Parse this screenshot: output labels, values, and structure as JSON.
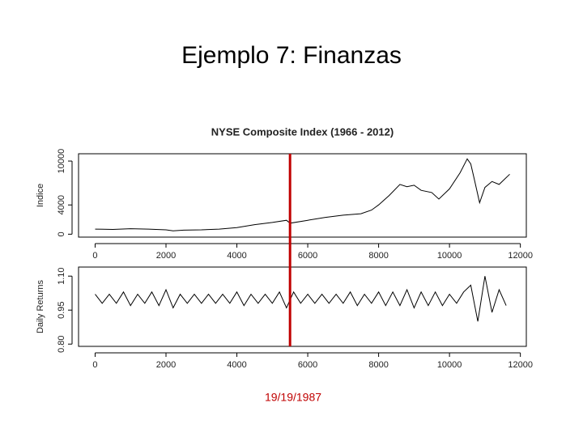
{
  "title": "Ejemplo 7: Finanzas",
  "annotation": {
    "text": "19/19/1987",
    "x": 5500,
    "color": "#c00000"
  },
  "chart_data": [
    {
      "type": "line",
      "title": "NYSE Composite Index (1966 - 2012)",
      "y_label": "Indice",
      "color": "#000000",
      "x": [
        0,
        500,
        1000,
        1500,
        2000,
        2200,
        2500,
        3000,
        3500,
        4000,
        4500,
        5000,
        5400,
        5500,
        6000,
        6500,
        7000,
        7500,
        7800,
        8000,
        8300,
        8600,
        8800,
        9000,
        9200,
        9500,
        9700,
        10000,
        10300,
        10500,
        10600,
        10700,
        10850,
        11000,
        11200,
        11400,
        11700
      ],
      "values": [
        700,
        650,
        750,
        700,
        600,
        450,
        550,
        600,
        700,
        900,
        1300,
        1600,
        1900,
        1500,
        1900,
        2300,
        2600,
        2800,
        3300,
        4000,
        5300,
        6800,
        6500,
        6700,
        6000,
        5700,
        4800,
        6200,
        8400,
        10300,
        9600,
        7500,
        4300,
        6400,
        7200,
        6800,
        8200
      ],
      "xlim": [
        -468,
        12168
      ],
      "xticks": [
        0,
        2000,
        4000,
        6000,
        8000,
        10000,
        12000
      ],
      "ylim": [
        -400,
        11000
      ],
      "yticks": [
        0,
        4000,
        10000
      ]
    },
    {
      "type": "line",
      "y_label": "Daily Returns",
      "color": "#000000",
      "x": [
        0,
        200,
        400,
        600,
        800,
        1000,
        1200,
        1400,
        1600,
        1800,
        2000,
        2200,
        2400,
        2600,
        2800,
        3000,
        3200,
        3400,
        3600,
        3800,
        4000,
        4200,
        4400,
        4600,
        4800,
        5000,
        5200,
        5400,
        5600,
        5800,
        6000,
        6200,
        6400,
        6600,
        6800,
        7000,
        7200,
        7400,
        7600,
        7800,
        8000,
        8200,
        8400,
        8600,
        8800,
        9000,
        9200,
        9400,
        9600,
        9800,
        10000,
        10200,
        10400,
        10600,
        10800,
        11000,
        11200,
        11400,
        11600
      ],
      "values": [
        1.02,
        0.98,
        1.02,
        0.98,
        1.03,
        0.97,
        1.02,
        0.98,
        1.03,
        0.97,
        1.04,
        0.96,
        1.02,
        0.98,
        1.02,
        0.98,
        1.02,
        0.98,
        1.02,
        0.98,
        1.03,
        0.97,
        1.02,
        0.98,
        1.02,
        0.98,
        1.03,
        0.96,
        1.03,
        0.98,
        1.02,
        0.98,
        1.02,
        0.98,
        1.02,
        0.98,
        1.03,
        0.97,
        1.02,
        0.98,
        1.03,
        0.97,
        1.03,
        0.97,
        1.04,
        0.96,
        1.03,
        0.97,
        1.03,
        0.97,
        1.02,
        0.98,
        1.03,
        1.06,
        0.9,
        1.1,
        0.94,
        1.04,
        0.97
      ],
      "xlim": [
        -468,
        12168
      ],
      "xticks": [
        0,
        2000,
        4000,
        6000,
        8000,
        10000,
        12000
      ],
      "ylim": [
        0.79,
        1.14
      ],
      "yticks": [
        {
          "value": 0.8,
          "label": "0.80"
        },
        {
          "value": 0.95,
          "label": "0.95"
        },
        {
          "value": 1.1,
          "label": "1.10"
        }
      ]
    }
  ]
}
